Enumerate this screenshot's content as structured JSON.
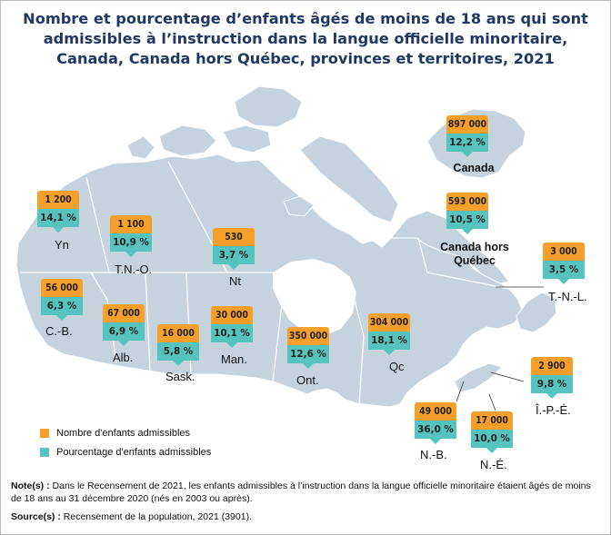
{
  "title": {
    "line1": "Nombre et pourcentage d’enfants âgés de moins de 18 ans qui sont",
    "line2": "admissibles à l’instruction dans la langue officielle minoritaire,",
    "line3": "Canada, Canada hors Québec, provinces et territoires, 2021"
  },
  "colors": {
    "count": "#f6a02b",
    "percent": "#57c3bf",
    "land": "#c5d3df",
    "title": "#1f3864"
  },
  "regions": [
    {
      "id": "canada",
      "label": "Canada",
      "count": "897 000",
      "percent": "12,2 %"
    },
    {
      "id": "canada-hors-quebec",
      "label": "Canada hors Québec",
      "count": "593 000",
      "percent": "10,5 %"
    },
    {
      "id": "yn",
      "label": "Yn",
      "count": "1 200",
      "percent": "14,1 %"
    },
    {
      "id": "tno",
      "label": "T.N.-O.",
      "count": "1 100",
      "percent": "10,9 %"
    },
    {
      "id": "nt",
      "label": "Nt",
      "count": "530",
      "percent": "3,7 %"
    },
    {
      "id": "cb",
      "label": "C.-B.",
      "count": "56 000",
      "percent": "6,3 %"
    },
    {
      "id": "alb",
      "label": "Alb.",
      "count": "67 000",
      "percent": "6,9 %"
    },
    {
      "id": "sask",
      "label": "Sask.",
      "count": "16 000",
      "percent": "5,8 %"
    },
    {
      "id": "man",
      "label": "Man.",
      "count": "30 000",
      "percent": "10,1 %"
    },
    {
      "id": "ont",
      "label": "Ont.",
      "count": "350 000",
      "percent": "12,6 %"
    },
    {
      "id": "qc",
      "label": "Qc",
      "count": "304 000",
      "percent": "18,1 %"
    },
    {
      "id": "tnl",
      "label": "T.-N.-L.",
      "count": "3 000",
      "percent": "3,5 %"
    },
    {
      "id": "ipe",
      "label": "Î.-P.-É.",
      "count": "2 900",
      "percent": "9,8 %"
    },
    {
      "id": "nb",
      "label": "N.-B.",
      "count": "49 000",
      "percent": "36,0 %"
    },
    {
      "id": "ne",
      "label": "N.-É.",
      "count": "17 000",
      "percent": "10,0 %"
    }
  ],
  "legend": {
    "count_label": "Nombre d'enfants admissibles",
    "percent_label": "Pourcentage d'enfants admissibles"
  },
  "notes": {
    "note_label": "Note(s) :",
    "note_text": "Dans le Recensement de 2021, les enfants admissibles à l’instruction dans la langue officielle minoritaire étaient âgés de moins de 18 ans au 31 décembre 2020 (nés en 2003 ou après).",
    "source_label": "Source(s) :",
    "source_text": "Recensement de la population, 2021 (3901)."
  }
}
